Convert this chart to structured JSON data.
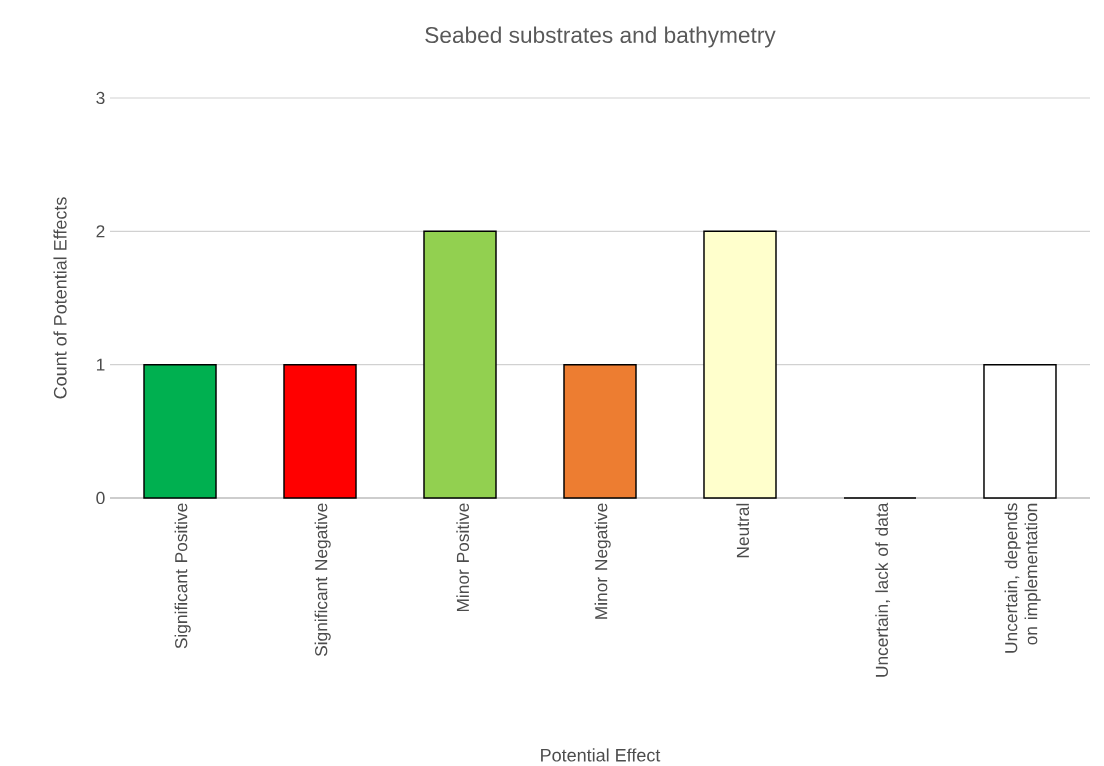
{
  "chart_data": {
    "type": "bar",
    "title": "Seabed substrates and bathymetry",
    "xlabel": "Potential Effect",
    "ylabel": "Count of Potential Effects",
    "categories": [
      "Significant Positive",
      "Significant Negative",
      "Minor Positive",
      "Minor Negative",
      "Neutral",
      "Uncertain, lack of data",
      "Uncertain, depends on implementation"
    ],
    "values": [
      1,
      1,
      2,
      1,
      2,
      0,
      1
    ],
    "colors": [
      "#00b050",
      "#ff0000",
      "#92d050",
      "#ed7d31",
      "#ffffcc",
      "#ffffff",
      "#ffffff"
    ],
    "ylim": [
      0,
      3
    ],
    "yticks": [
      0,
      1,
      2,
      3
    ],
    "grid": "y"
  }
}
